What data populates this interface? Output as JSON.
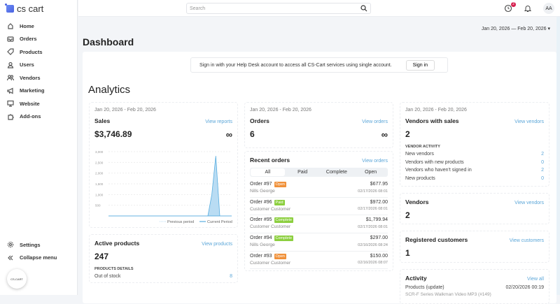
{
  "brand": "cs cart",
  "sidebar": {
    "items": [
      {
        "label": "Home",
        "icon": "home-icon"
      },
      {
        "label": "Orders",
        "icon": "inbox-icon"
      },
      {
        "label": "Products",
        "icon": "tag-icon"
      },
      {
        "label": "Users",
        "icon": "user-icon"
      },
      {
        "label": "Vendors",
        "icon": "users-icon"
      },
      {
        "label": "Marketing",
        "icon": "megaphone-icon"
      },
      {
        "label": "Website",
        "icon": "monitor-icon"
      },
      {
        "label": "Add-ons",
        "icon": "puzzle-icon"
      }
    ],
    "bottom": [
      {
        "label": "Settings",
        "icon": "gear-icon"
      },
      {
        "label": "Collapse menu",
        "icon": "chevrons-left-icon"
      }
    ],
    "avatar_text": "CS-CART"
  },
  "topbar": {
    "search_placeholder": "Search",
    "notif_count": "2",
    "user_initials": "AA"
  },
  "date_range": "Jan 20, 2026 — Feb 20, 2026",
  "page_title": "Dashboard",
  "banner": {
    "text": "Sign in with your Help Desk account to access all CS-Cart services using single account.",
    "button": "Sign in"
  },
  "section_title": "Analytics",
  "period": "Jan 20, 2026 - Feb 20, 2026",
  "sales": {
    "title": "Sales",
    "link": "View reports",
    "value": "$3,746.89",
    "legend_prev": "Previous period",
    "legend_cur": "Current Period"
  },
  "chart_data": {
    "type": "area",
    "title": "Sales",
    "y_ticks": [
      "500",
      "1,000",
      "1,500",
      "2,000",
      "2,500",
      "3,000"
    ],
    "ylim": [
      0,
      3000
    ],
    "x": "Jan 20 2026 – Feb 20 2026 (daily)",
    "series": [
      {
        "name": "Current Period",
        "values": [
          0,
          0,
          0,
          0,
          0,
          0,
          0,
          0,
          0,
          0,
          0,
          0,
          0,
          0,
          0,
          0,
          0,
          0,
          0,
          0,
          0,
          0,
          0,
          0,
          0,
          0,
          1000,
          2800,
          0,
          0,
          0,
          0
        ]
      },
      {
        "name": "Previous period",
        "values": [
          0,
          0,
          0,
          0,
          0,
          0,
          0,
          0,
          0,
          0,
          0,
          0,
          0,
          0,
          0,
          0,
          0,
          0,
          0,
          0,
          0,
          0,
          0,
          0,
          0,
          0,
          0,
          0,
          0,
          0,
          0,
          0
        ]
      }
    ],
    "legend": "bottom-right"
  },
  "active_products": {
    "title": "Active products",
    "link": "View products",
    "value": "247",
    "section": "PRODUCTS DETAILS",
    "rows": [
      {
        "label": "Out of stock",
        "value": "8"
      }
    ]
  },
  "orders": {
    "title": "Orders",
    "link": "View orders",
    "value": "6"
  },
  "recent_orders": {
    "title": "Recent orders",
    "link": "View orders",
    "tabs": [
      "All",
      "Paid",
      "Complete",
      "Open"
    ],
    "items": [
      {
        "order": "Order #97",
        "status": "Open",
        "color": "#f0913a",
        "customer": "Nills George",
        "amount": "$677.95",
        "date": "02/17/2026 08:01"
      },
      {
        "order": "Order #96",
        "status": "Paid",
        "color": "#8ccf3f",
        "customer": "Customer Customer",
        "amount": "$972.00",
        "date": "02/17/2026 08:01"
      },
      {
        "order": "Order #95",
        "status": "Complete",
        "color": "#8ccf3f",
        "customer": "Customer Customer",
        "amount": "$1,799.94",
        "date": "02/17/2026 08:01"
      },
      {
        "order": "Order #94",
        "status": "Complete",
        "color": "#8ccf3f",
        "customer": "Nills George",
        "amount": "$297.00",
        "date": "02/16/2026 08:24"
      },
      {
        "order": "Order #93",
        "status": "Open",
        "color": "#f0913a",
        "customer": "Customer Customer",
        "amount": "$150.00",
        "date": "02/16/2026 08:07"
      }
    ]
  },
  "vendors_sales": {
    "title": "Vendors with sales",
    "link": "View vendors",
    "value": "2",
    "section": "VENDOR ACTIVITY",
    "rows": [
      {
        "label": "New vendors",
        "value": "2"
      },
      {
        "label": "Vendors with new products",
        "value": "0"
      },
      {
        "label": "Vendors who haven't signed in",
        "value": "2"
      },
      {
        "label": "New products",
        "value": "0"
      }
    ]
  },
  "vendors": {
    "title": "Vendors",
    "link": "View vendors",
    "value": "2"
  },
  "customers": {
    "title": "Registered customers",
    "link": "View customers",
    "value": "1"
  },
  "activity": {
    "title": "Activity",
    "link": "View all",
    "items": [
      {
        "label": "Products (update)",
        "date": "02/20/2026 00:19",
        "detail": "SCR-F Series Walkman Video MP3 (#149)"
      }
    ]
  }
}
